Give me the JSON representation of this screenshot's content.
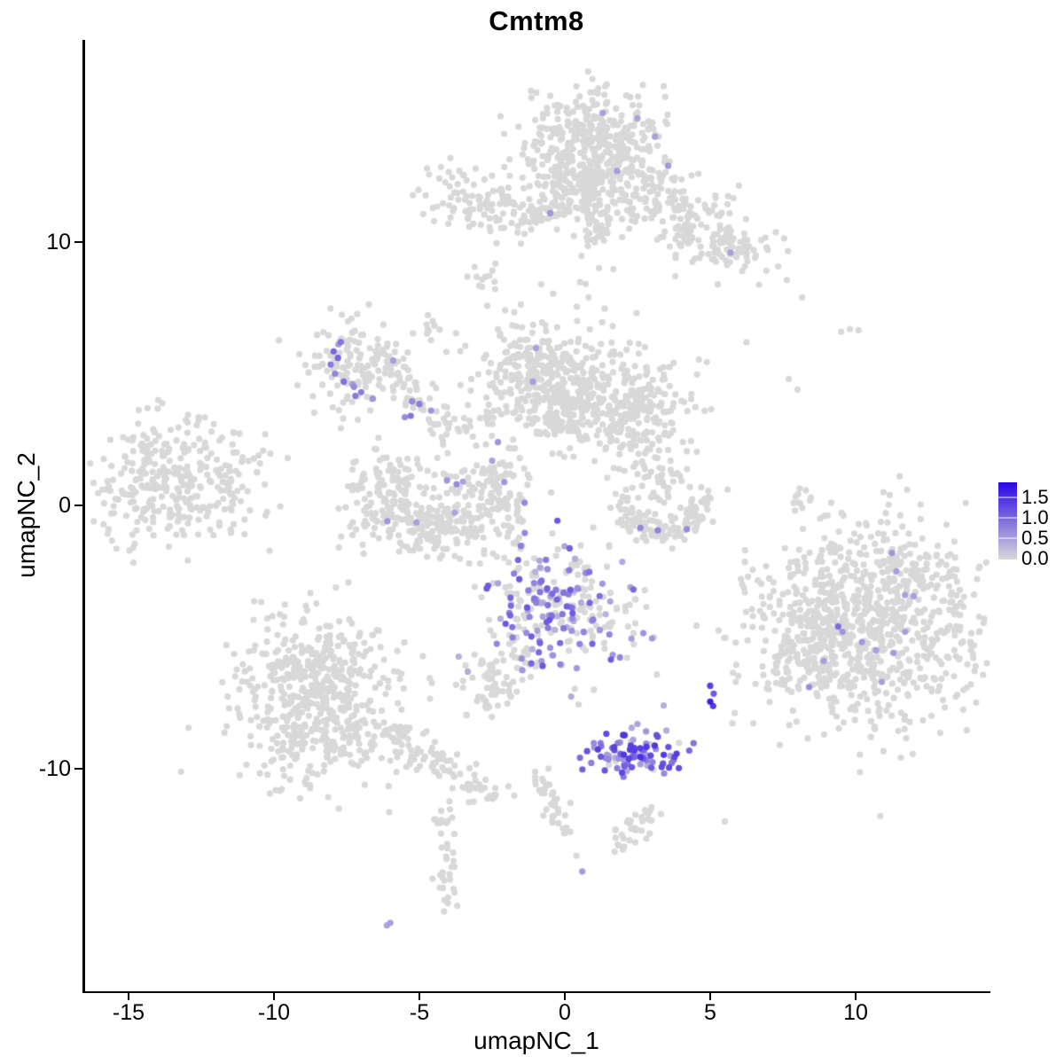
{
  "chart_data": {
    "type": "scatter",
    "title": "Cmtm8",
    "xlabel": "umapNC_1",
    "ylabel": "umapNC_2",
    "xlim": [
      -16.5,
      14.6
    ],
    "ylim": [
      -18.5,
      17.7
    ],
    "x_ticks": [
      {
        "value": -15,
        "label": "-15"
      },
      {
        "value": -10,
        "label": "-10"
      },
      {
        "value": -5,
        "label": "-5"
      },
      {
        "value": 0,
        "label": "0"
      },
      {
        "value": 5,
        "label": "5"
      },
      {
        "value": 10,
        "label": "10"
      }
    ],
    "y_ticks": [
      {
        "value": 10,
        "label": "10"
      },
      {
        "value": 0,
        "label": "0"
      },
      {
        "value": -10,
        "label": "-10"
      }
    ],
    "grid": false,
    "legend": {
      "position": "right",
      "labels": [
        {
          "value": 1.5,
          "label": "1.5"
        },
        {
          "value": 1.0,
          "label": "1.0"
        },
        {
          "value": 0.5,
          "label": "0.5"
        },
        {
          "value": 0.0,
          "label": "0.0"
        }
      ],
      "vmin": 0.0,
      "vmax": 1.85,
      "color_low": "#d8d8d8",
      "color_high": "#2b06e6"
    },
    "point_radius_px": 3.6,
    "background_color": "#ffffff",
    "axis_color": "#000000",
    "clusters": [
      {
        "name": "top-main-blob",
        "c": [
          0.95,
          13.5
        ],
        "s": [
          1.25,
          1.1
        ],
        "rot": 0,
        "n": 430,
        "expr": [
          0.004,
          0.4,
          0.6
        ]
      },
      {
        "name": "top-blob-base",
        "c": [
          0.8,
          11.9
        ],
        "s": [
          1.5,
          0.5
        ],
        "rot": 0,
        "n": 90
      },
      {
        "name": "top-arm-right",
        "c": [
          4.3,
          10.9
        ],
        "s": [
          1.6,
          0.7
        ],
        "rot": -33,
        "n": 190
      },
      {
        "name": "top-arm-tip",
        "c": [
          5.8,
          9.75
        ],
        "s": [
          0.5,
          0.4
        ],
        "rot": 0,
        "n": 30
      },
      {
        "name": "top-arm-left",
        "c": [
          -2.55,
          11.5
        ],
        "s": [
          1.25,
          0.7
        ],
        "rot": -12,
        "n": 120
      },
      {
        "name": "small-clump-a",
        "c": [
          -2.65,
          8.6
        ],
        "s": [
          0.35,
          0.28
        ],
        "rot": 40,
        "n": 12
      },
      {
        "name": "small-clump-b",
        "c": [
          -4.65,
          6.7
        ],
        "s": [
          0.28,
          0.3
        ],
        "rot": 0,
        "n": 10
      },
      {
        "name": "cluster-e",
        "c": [
          -7.3,
          5.2
        ],
        "s": [
          0.72,
          0.92
        ],
        "rot": 0,
        "n": 115,
        "expr": [
          0.02,
          0.5,
          0.9
        ]
      },
      {
        "name": "cluster-e-fringe",
        "c": [
          -8.9,
          5.6
        ],
        "s": [
          0.35,
          0.4
        ],
        "rot": 0,
        "n": 10
      },
      {
        "name": "mid-lobe-1",
        "c": [
          -0.9,
          4.9
        ],
        "s": [
          1.15,
          1.0
        ],
        "rot": -15,
        "n": 260,
        "expr": [
          0.004,
          0.4,
          0.6
        ]
      },
      {
        "name": "mid-lobe-2",
        "c": [
          1.2,
          3.7
        ],
        "s": [
          1.25,
          0.95
        ],
        "rot": -15,
        "n": 280,
        "expr": [
          0.004,
          0.4,
          0.6
        ]
      },
      {
        "name": "mid-fringe",
        "c": [
          0.2,
          4.3
        ],
        "s": [
          2.1,
          1.5
        ],
        "rot": 0,
        "n": 80
      },
      {
        "name": "mid-right-ext",
        "c": [
          2.9,
          3.9
        ],
        "s": [
          0.6,
          0.8
        ],
        "rot": 0,
        "n": 60
      },
      {
        "name": "bowl-left-arm",
        "c": [
          -6.2,
          0.6
        ],
        "s": [
          0.55,
          0.8
        ],
        "rot": 0,
        "n": 90
      },
      {
        "name": "bowl-bottom",
        "c": [
          -4.6,
          -0.8
        ],
        "s": [
          1.3,
          0.55
        ],
        "rot": -5,
        "n": 180,
        "expr": [
          0.01,
          0.4,
          0.7
        ]
      },
      {
        "name": "bowl-right-arm",
        "c": [
          -2.4,
          0.7
        ],
        "s": [
          0.6,
          1.0
        ],
        "rot": 0,
        "n": 110,
        "expr": [
          0.01,
          0.4,
          0.7
        ]
      },
      {
        "name": "bowl-inner",
        "c": [
          -4.5,
          0.35
        ],
        "s": [
          1.2,
          0.8
        ],
        "rot": 0,
        "n": 55
      },
      {
        "name": "left-cluster",
        "c": [
          -13.6,
          0.9
        ],
        "s": [
          1.45,
          1.15
        ],
        "rot": 0,
        "n": 300
      },
      {
        "name": "left-cluster-fringe",
        "c": [
          -11.4,
          0.9
        ],
        "s": [
          0.8,
          1.2
        ],
        "rot": 0,
        "n": 35
      },
      {
        "name": "k-blob",
        "c": [
          3.35,
          1.0
        ],
        "s": [
          0.45,
          0.75
        ],
        "rot": 0,
        "n": 45
      },
      {
        "name": "expr-mid-cluster",
        "c": [
          -0.35,
          -3.9
        ],
        "s": [
          1.2,
          1.25
        ],
        "rot": 0,
        "n": 255,
        "expr": [
          0.45,
          0.3,
          1.15
        ]
      },
      {
        "name": "expr-mid-right",
        "c": [
          1.8,
          -4.6
        ],
        "s": [
          0.55,
          0.55
        ],
        "rot": 0,
        "n": 22,
        "expr": [
          0.2,
          0.4,
          0.8
        ]
      },
      {
        "name": "small-m",
        "c": [
          -2.5,
          -6.9
        ],
        "s": [
          0.5,
          0.72
        ],
        "rot": 0,
        "n": 60
      },
      {
        "name": "bottom-expr-cluster",
        "c": [
          2.4,
          -9.5
        ],
        "s": [
          0.78,
          0.4
        ],
        "rot": 0,
        "n": 88,
        "expr": [
          0.93,
          0.3,
          1.45
        ]
      },
      {
        "name": "right-main",
        "c": [
          10.6,
          -4.6
        ],
        "s": [
          2.1,
          1.95
        ],
        "rot": 0,
        "n": 760,
        "expr": [
          0.005,
          0.4,
          0.6
        ]
      },
      {
        "name": "right-left-arm",
        "c": [
          8.3,
          -5.3
        ],
        "s": [
          0.85,
          1.05
        ],
        "rot": 0,
        "n": 120,
        "expr": [
          0.01,
          0.4,
          0.7
        ]
      },
      {
        "name": "right-top-fringe",
        "c": [
          10.8,
          -2.5
        ],
        "s": [
          1.8,
          0.65
        ],
        "rot": 0,
        "n": 100,
        "expr": [
          0.005,
          0.4,
          0.6
        ]
      },
      {
        "name": "bottomleft-main",
        "c": [
          -8.5,
          -7.6
        ],
        "s": [
          1.55,
          1.6
        ],
        "rot": 0,
        "n": 470
      },
      {
        "name": "bottomleft-top",
        "c": [
          -8.6,
          -5.65
        ],
        "s": [
          1.15,
          0.6
        ],
        "rot": 0,
        "n": 90
      },
      {
        "name": "s2-hook",
        "c": [
          2.3,
          -12.35
        ],
        "s": [
          0.45,
          0.38
        ],
        "rot": 0,
        "n": 28
      }
    ],
    "strands": [
      {
        "name": "neck",
        "pts": [
          [
            0.95,
            12.9
          ],
          [
            0.75,
            10.7
          ],
          [
            1.35,
            10.1
          ]
        ],
        "spread": 0.28,
        "n": 55
      },
      {
        "name": "neck-sparse",
        "pts": [
          [
            0.8,
            9.4
          ],
          [
            0.3,
            7.2
          ]
        ],
        "spread": 0.4,
        "n": 10
      },
      {
        "name": "left-arm-tail",
        "pts": [
          [
            -1.6,
            11.2
          ],
          [
            0.1,
            11.0
          ]
        ],
        "spread": 0.22,
        "n": 22
      },
      {
        "name": "chain-f",
        "pts": [
          [
            -6.3,
            6.0
          ],
          [
            -5.7,
            4.9
          ],
          [
            -5.1,
            3.9
          ],
          [
            -4.4,
            3.2
          ],
          [
            -3.6,
            3.0
          ]
        ],
        "spread": 0.28,
        "n": 80
      },
      {
        "name": "chain-f2",
        "pts": [
          [
            -3.2,
            3.0
          ],
          [
            -2.5,
            3.4
          ],
          [
            -2.0,
            3.7
          ]
        ],
        "spread": 0.25,
        "n": 25
      },
      {
        "name": "k-arc",
        "pts": [
          [
            1.9,
            0.3
          ],
          [
            2.3,
            -0.5
          ],
          [
            3.0,
            -1.0
          ],
          [
            3.8,
            -0.95
          ],
          [
            4.5,
            -0.4
          ],
          [
            4.75,
            0.3
          ]
        ],
        "spread": 0.28,
        "n": 130
      },
      {
        "name": "k-up",
        "pts": [
          [
            2.4,
            2.2
          ],
          [
            2.2,
            3.2
          ]
        ],
        "spread": 0.3,
        "n": 9
      },
      {
        "name": "l-tail",
        "pts": [
          [
            -1.3,
            -5.3
          ],
          [
            -1.65,
            -6.1
          ]
        ],
        "spread": 0.2,
        "n": 13,
        "expr": [
          0.25,
          0.3,
          0.8
        ]
      },
      {
        "name": "q-tail",
        "pts": [
          [
            -6.6,
            -8.5
          ],
          [
            -5.3,
            -9.3
          ],
          [
            -4.1,
            -10.1
          ],
          [
            -3.0,
            -10.6
          ],
          [
            -2.45,
            -10.85
          ]
        ],
        "spread": 0.33,
        "n": 105
      },
      {
        "name": "r-strand",
        "pts": [
          [
            -4.0,
            -11.3
          ],
          [
            -4.25,
            -12.3
          ],
          [
            -3.9,
            -13.3
          ],
          [
            -4.2,
            -14.3
          ],
          [
            -3.85,
            -15.3
          ]
        ],
        "spread": 0.17,
        "n": 38
      },
      {
        "name": "s-strand",
        "pts": [
          [
            -0.8,
            -10.1
          ],
          [
            -0.55,
            -11.0
          ],
          [
            -0.2,
            -11.9
          ],
          [
            0.15,
            -12.55
          ]
        ],
        "spread": 0.2,
        "n": 40
      },
      {
        "name": "s2-up",
        "pts": [
          [
            2.75,
            -12.0
          ],
          [
            3.05,
            -11.6
          ]
        ],
        "spread": 0.15,
        "n": 7
      },
      {
        "name": "p-top-strand",
        "pts": [
          [
            8.0,
            0.9
          ],
          [
            8.35,
            -0.7
          ]
        ],
        "spread": 0.2,
        "n": 11
      }
    ],
    "extra_gray_points": [
      [
        5.6,
        0.6
      ],
      [
        6.1,
        -3.0
      ],
      [
        5.5,
        -12.0
      ],
      [
        7.7,
        4.8
      ],
      [
        8.0,
        4.4
      ],
      [
        9.5,
        6.6
      ],
      [
        9.8,
        6.7
      ],
      [
        10.1,
        6.65
      ],
      [
        3.8,
        8.7
      ],
      [
        -10.3,
        2.7
      ],
      [
        -15.9,
        0.6
      ],
      [
        1.0,
        -7.0
      ],
      [
        0.4,
        -13.3
      ]
    ],
    "extra_expressing_points": [
      [
        1.3,
        14.9,
        0.5
      ],
      [
        2.5,
        14.7,
        0.45
      ],
      [
        3.1,
        14.0,
        0.5
      ],
      [
        1.8,
        12.7,
        0.55
      ],
      [
        -0.5,
        11.1,
        0.6
      ],
      [
        5.7,
        9.6,
        0.5
      ],
      [
        -7.7,
        6.2,
        0.9
      ],
      [
        -7.95,
        5.85,
        1.0
      ],
      [
        -8.05,
        5.35,
        0.85
      ],
      [
        -7.9,
        5.0,
        0.75
      ],
      [
        -7.6,
        4.7,
        0.9
      ],
      [
        -7.25,
        4.5,
        0.7
      ],
      [
        -7.0,
        4.3,
        0.8
      ],
      [
        -7.8,
        5.6,
        1.05
      ],
      [
        -6.6,
        4.05,
        0.6
      ],
      [
        -5.9,
        5.5,
        0.5
      ],
      [
        -5.25,
        3.95,
        0.7
      ],
      [
        -5.0,
        3.85,
        0.8
      ],
      [
        -4.6,
        3.6,
        0.6
      ],
      [
        -5.3,
        3.4,
        0.9
      ],
      [
        -5.5,
        3.35,
        0.7
      ],
      [
        -1.1,
        4.7,
        0.5
      ],
      [
        -2.3,
        2.4,
        0.6
      ],
      [
        -2.5,
        1.7,
        0.5
      ],
      [
        -4.05,
        0.95,
        0.6
      ],
      [
        -3.5,
        0.9,
        0.5
      ],
      [
        -6.1,
        -0.6,
        0.6
      ],
      [
        -5.1,
        -0.65,
        0.5
      ],
      [
        2.6,
        -0.85,
        0.7
      ],
      [
        3.2,
        -0.95,
        0.75
      ],
      [
        4.2,
        -0.9,
        0.7
      ],
      [
        2.7,
        -4.85,
        0.6
      ],
      [
        3.0,
        -5.05,
        0.55
      ],
      [
        3.4,
        -7.6,
        0.35
      ],
      [
        2.5,
        -8.3,
        0.45
      ],
      [
        2.3,
        -8.45,
        0.4
      ],
      [
        1.9,
        -9.0,
        0.6
      ],
      [
        2.35,
        -8.9,
        0.5
      ],
      [
        5.0,
        -6.85,
        1.35
      ],
      [
        5.12,
        -7.15,
        1.1
      ],
      [
        5.0,
        -7.45,
        1.65
      ],
      [
        5.1,
        -7.62,
        1.4
      ],
      [
        11.4,
        -2.5,
        0.5
      ],
      [
        11.7,
        -3.4,
        0.5
      ],
      [
        12.0,
        -3.45,
        0.5
      ],
      [
        9.4,
        -4.6,
        0.95
      ],
      [
        9.55,
        -4.8,
        0.6
      ],
      [
        11.7,
        -4.8,
        0.5
      ],
      [
        10.7,
        -5.5,
        0.5
      ],
      [
        11.3,
        -5.6,
        0.55
      ],
      [
        8.9,
        -5.9,
        0.5
      ],
      [
        10.9,
        -6.7,
        0.5
      ],
      [
        8.4,
        -6.9,
        0.65
      ],
      [
        -6.0,
        -15.85,
        0.5
      ],
      [
        -6.12,
        -15.95,
        0.45
      ],
      [
        0.6,
        -13.9,
        0.55
      ],
      [
        2.6,
        -9.55,
        1.5
      ],
      [
        2.2,
        -9.62,
        1.35
      ],
      [
        2.95,
        -9.5,
        1.25
      ]
    ]
  }
}
